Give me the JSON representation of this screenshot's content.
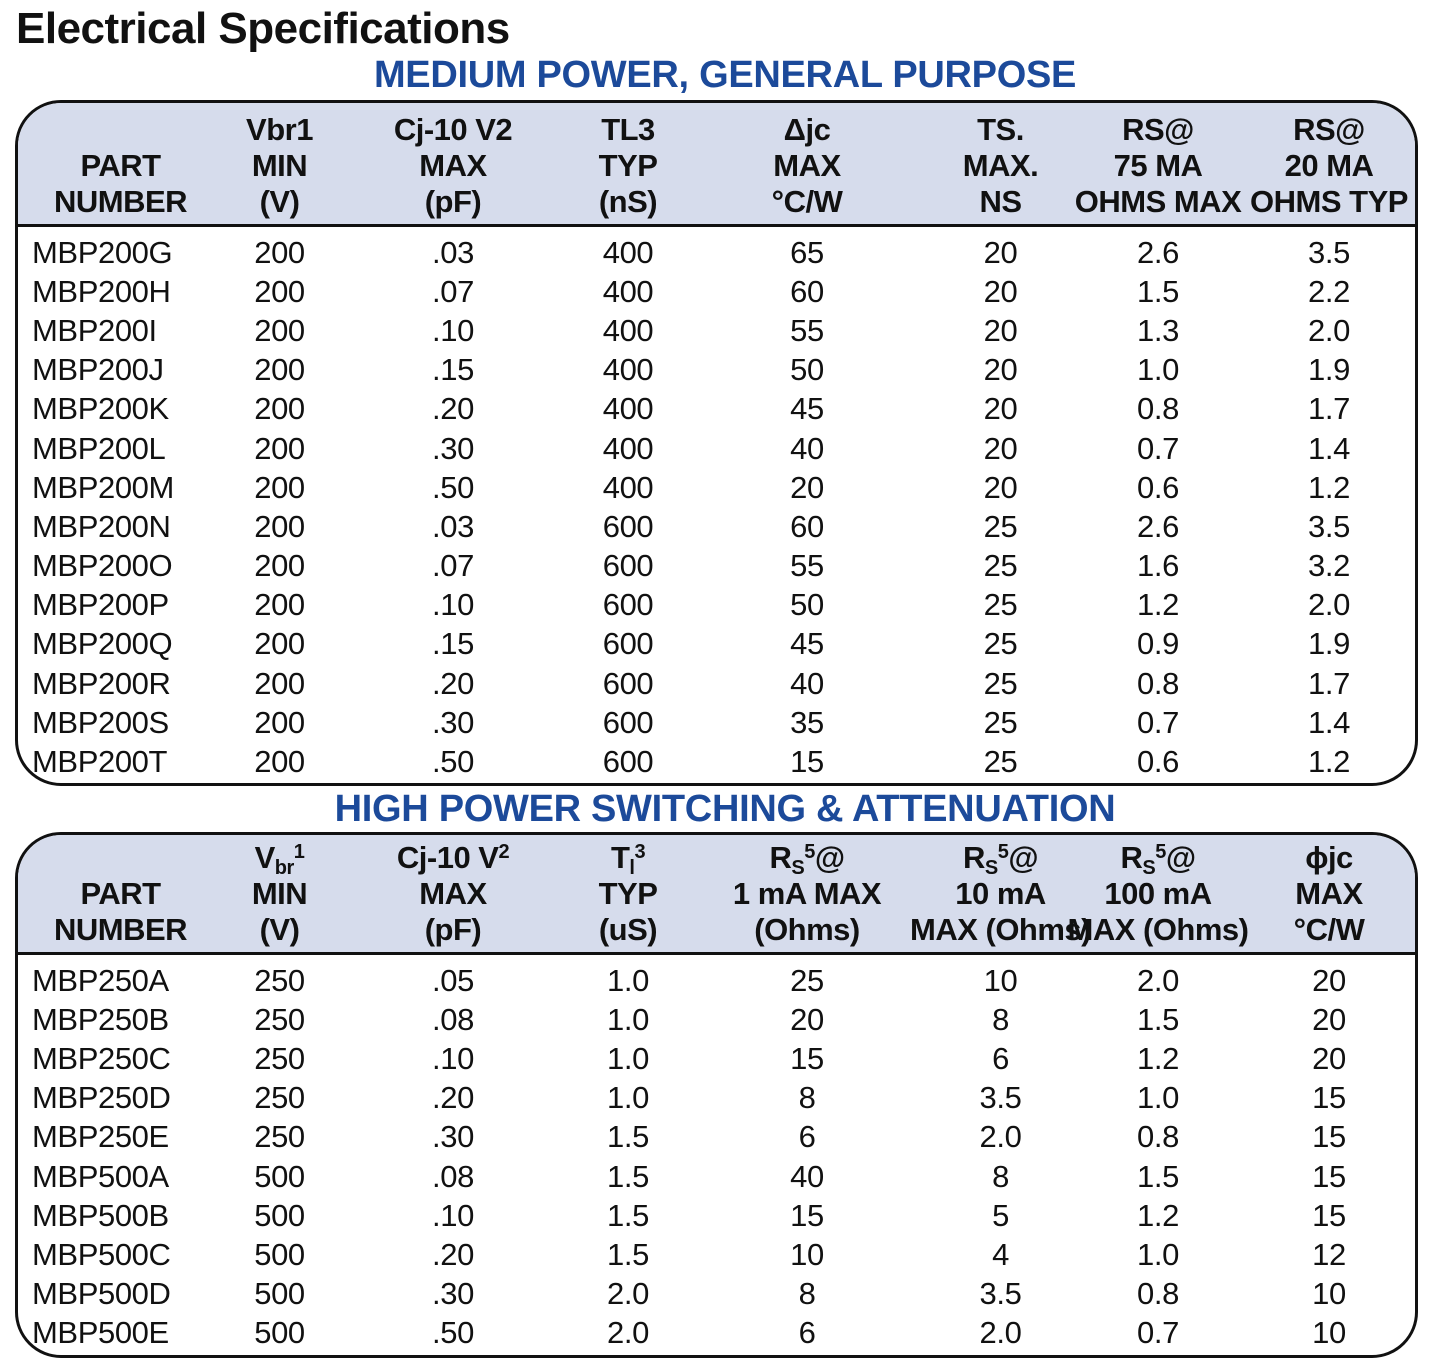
{
  "page_title": "Electrical Specifications",
  "sections": [
    {
      "title": "MEDIUM POWER, GENERAL PURPOSE",
      "headers": [
        {
          "lines": [
            {
              "text": "PART"
            },
            {
              "text": "NUMBER"
            }
          ]
        },
        {
          "lines": [
            {
              "text": "Vbr1"
            },
            {
              "text": "MIN"
            },
            {
              "text": "(V)"
            }
          ]
        },
        {
          "lines": [
            {
              "text": "Cj-10 V2"
            },
            {
              "text": "MAX"
            },
            {
              "text": "(pF)"
            }
          ]
        },
        {
          "lines": [
            {
              "text": "TL3"
            },
            {
              "text": "TYP"
            },
            {
              "text": "(nS)"
            }
          ]
        },
        {
          "lines": [
            {
              "text": "Δjc"
            },
            {
              "text": "MAX"
            },
            {
              "text": "°C/W"
            }
          ]
        },
        {
          "lines": [
            {
              "text": "TS."
            },
            {
              "text": "MAX."
            },
            {
              "text": "NS"
            }
          ]
        },
        {
          "lines": [
            {
              "text": "RS@"
            },
            {
              "text": "75 MA"
            },
            {
              "text": "OHMS MAX"
            }
          ]
        },
        {
          "lines": [
            {
              "text": "RS@"
            },
            {
              "text": "20 MA"
            },
            {
              "text": "OHMS TYP"
            }
          ]
        }
      ],
      "rows": [
        [
          "MBP200G",
          "200",
          ".03",
          "400",
          "65",
          "20",
          "2.6",
          "3.5"
        ],
        [
          "MBP200H",
          "200",
          ".07",
          "400",
          "60",
          "20",
          "1.5",
          "2.2"
        ],
        [
          "MBP200I",
          "200",
          ".10",
          "400",
          "55",
          "20",
          "1.3",
          "2.0"
        ],
        [
          "MBP200J",
          "200",
          ".15",
          "400",
          "50",
          "20",
          "1.0",
          "1.9"
        ],
        [
          "MBP200K",
          "200",
          ".20",
          "400",
          "45",
          "20",
          "0.8",
          "1.7"
        ],
        [
          "MBP200L",
          "200",
          ".30",
          "400",
          "40",
          "20",
          "0.7",
          "1.4"
        ],
        [
          "MBP200M",
          "200",
          ".50",
          "400",
          "20",
          "20",
          "0.6",
          "1.2"
        ],
        [
          "MBP200N",
          "200",
          ".03",
          "600",
          "60",
          "25",
          "2.6",
          "3.5"
        ],
        [
          "MBP200O",
          "200",
          ".07",
          "600",
          "55",
          "25",
          "1.6",
          "3.2"
        ],
        [
          "MBP200P",
          "200",
          ".10",
          "600",
          "50",
          "25",
          "1.2",
          "2.0"
        ],
        [
          "MBP200Q",
          "200",
          ".15",
          "600",
          "45",
          "25",
          "0.9",
          "1.9"
        ],
        [
          "MBP200R",
          "200",
          ".20",
          "600",
          "40",
          "25",
          "0.8",
          "1.7"
        ],
        [
          "MBP200S",
          "200",
          ".30",
          "600",
          "35",
          "25",
          "0.7",
          "1.4"
        ],
        [
          "MBP200T",
          "200",
          ".50",
          "600",
          "15",
          "25",
          "0.6",
          "1.2"
        ]
      ]
    },
    {
      "title": "HIGH POWER SWITCHING & ATTENUATION",
      "headers": [
        {
          "lines": [
            {
              "text": "PART"
            },
            {
              "text": "NUMBER"
            }
          ]
        },
        {
          "lines": [
            {
              "text": "V",
              "sub": "br",
              "sup": "1"
            },
            {
              "text": "MIN"
            },
            {
              "text": "(V)"
            }
          ]
        },
        {
          "lines": [
            {
              "text": "Cj-10 V",
              "sup": "2"
            },
            {
              "text": "MAX"
            },
            {
              "text": "(pF)"
            }
          ]
        },
        {
          "lines": [
            {
              "text": "T",
              "sub": "l",
              "sup": "3"
            },
            {
              "text": "TYP"
            },
            {
              "text": "(uS)"
            }
          ]
        },
        {
          "lines": [
            {
              "text": "R",
              "sub": "S",
              "sup": "5",
              "after": "@"
            },
            {
              "text": "1 mA  MAX"
            },
            {
              "text": "(Ohms)"
            }
          ]
        },
        {
          "lines": [
            {
              "text": "R",
              "sub": "S",
              "sup": "5",
              "after": "@"
            },
            {
              "text": "10 mA"
            },
            {
              "text": "MAX (Ohms)"
            }
          ]
        },
        {
          "lines": [
            {
              "text": "R",
              "sub": "S",
              "sup": "5",
              "after": "@"
            },
            {
              "text": "100 mA"
            },
            {
              "text": "MAX (Ohms)"
            }
          ]
        },
        {
          "lines": [
            {
              "text": "ϕjc"
            },
            {
              "text": "MAX"
            },
            {
              "text": "°C/W"
            }
          ]
        }
      ],
      "rows": [
        [
          "MBP250A",
          "250",
          ".05",
          "1.0",
          "25",
          "10",
          "2.0",
          "20"
        ],
        [
          "MBP250B",
          "250",
          ".08",
          "1.0",
          "20",
          "8",
          "1.5",
          "20"
        ],
        [
          "MBP250C",
          "250",
          ".10",
          "1.0",
          "15",
          "6",
          "1.2",
          "20"
        ],
        [
          "MBP250D",
          "250",
          ".20",
          "1.0",
          "8",
          "3.5",
          "1.0",
          "15"
        ],
        [
          "MBP250E",
          "250",
          ".30",
          "1.5",
          "6",
          "2.0",
          "0.8",
          "15"
        ],
        [
          "MBP500A",
          "500",
          ".08",
          "1.5",
          "40",
          "8",
          "1.5",
          "15"
        ],
        [
          "MBP500B",
          "500",
          ".10",
          "1.5",
          "15",
          "5",
          "1.2",
          "15"
        ],
        [
          "MBP500C",
          "500",
          ".20",
          "1.5",
          "10",
          "4",
          "1.0",
          "12"
        ],
        [
          "MBP500D",
          "500",
          ".30",
          "2.0",
          "8",
          "3.5",
          "0.8",
          "10"
        ],
        [
          "MBP500E",
          "500",
          ".50",
          "2.0",
          "6",
          "2.0",
          "0.7",
          "10"
        ]
      ]
    }
  ],
  "colors": {
    "section_title": "#1c4a9a",
    "header_bg": "#d6dcec",
    "border": "#111111"
  }
}
